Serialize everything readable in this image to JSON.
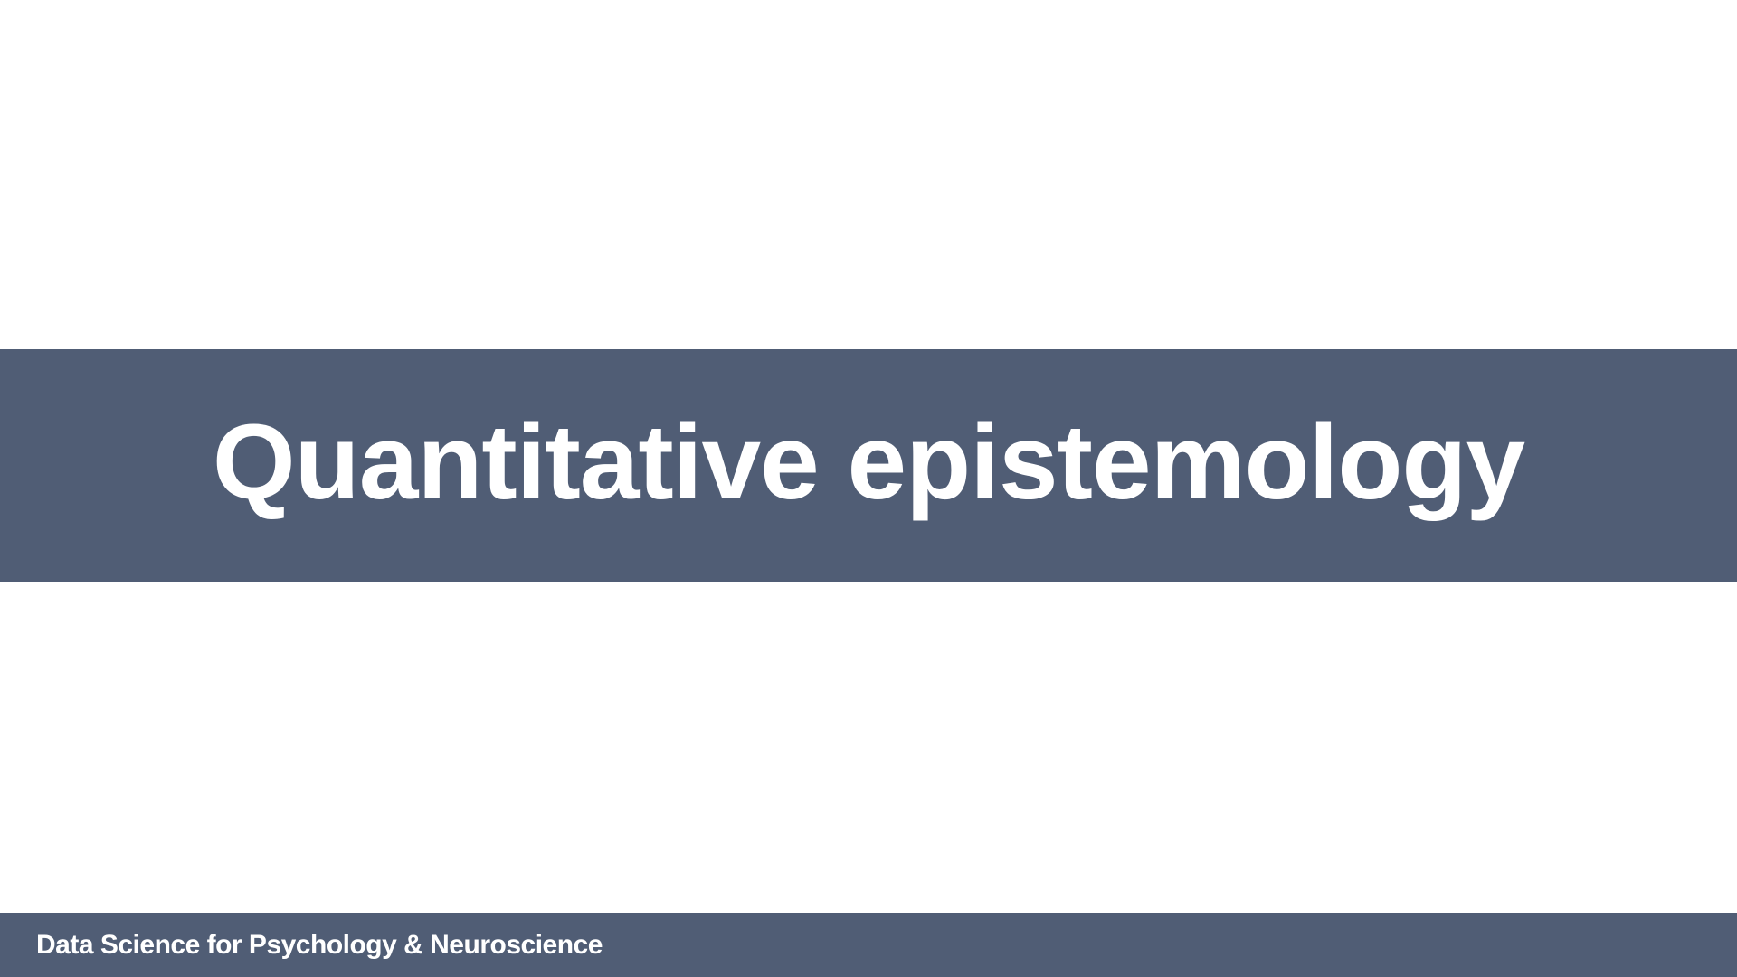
{
  "slide": {
    "title": "Quantitative epistemology",
    "footer": "Data Science for Psychology & Neuroscience"
  },
  "colors": {
    "band": "#505d75",
    "text": "#ffffff",
    "background": "#ffffff"
  }
}
